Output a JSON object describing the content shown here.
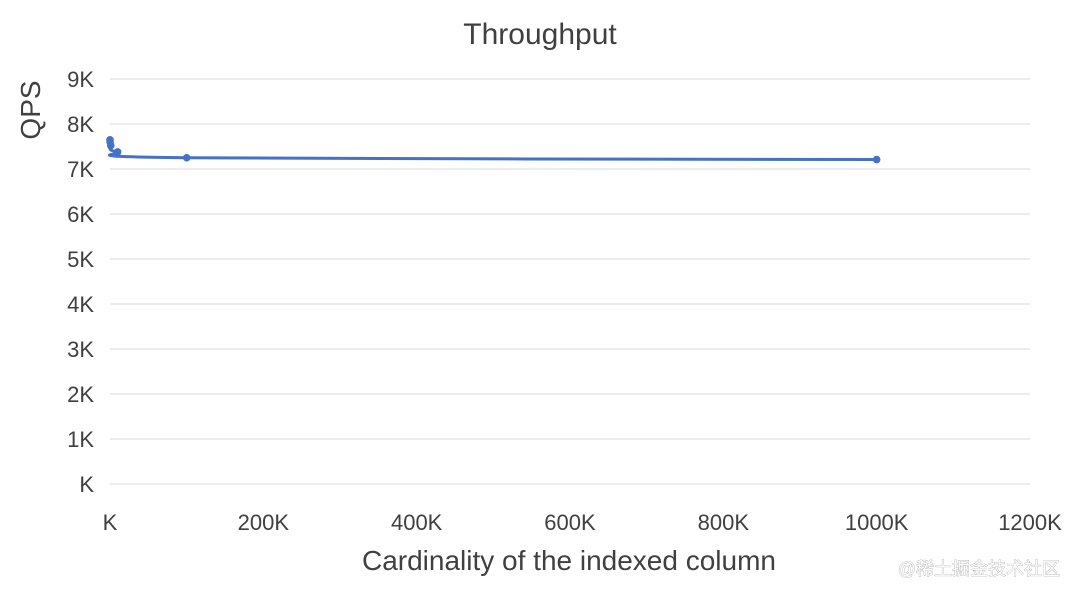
{
  "chart_data": {
    "type": "line",
    "title": "Throughput",
    "xlabel": "Cardinality of the indexed column",
    "ylabel": "QPS",
    "x_ticks": [
      "K",
      "200K",
      "400K",
      "600K",
      "800K",
      "1000K",
      "1200K"
    ],
    "y_ticks": [
      "K",
      "1K",
      "2K",
      "3K",
      "4K",
      "5K",
      "6K",
      "7K",
      "8K",
      "9K"
    ],
    "xlim": [
      0,
      1200000
    ],
    "ylim": [
      0,
      9000
    ],
    "grid": "horizontal",
    "legend": "none",
    "smooth": true,
    "series": [
      {
        "x": [
          10,
          100,
          1000,
          10000,
          100000,
          1000000
        ],
        "y": [
          7650,
          7600,
          7520,
          7380,
          7250,
          7210
        ],
        "color": "#4472c4"
      }
    ]
  },
  "watermark": "@稀土掘金技术社区"
}
